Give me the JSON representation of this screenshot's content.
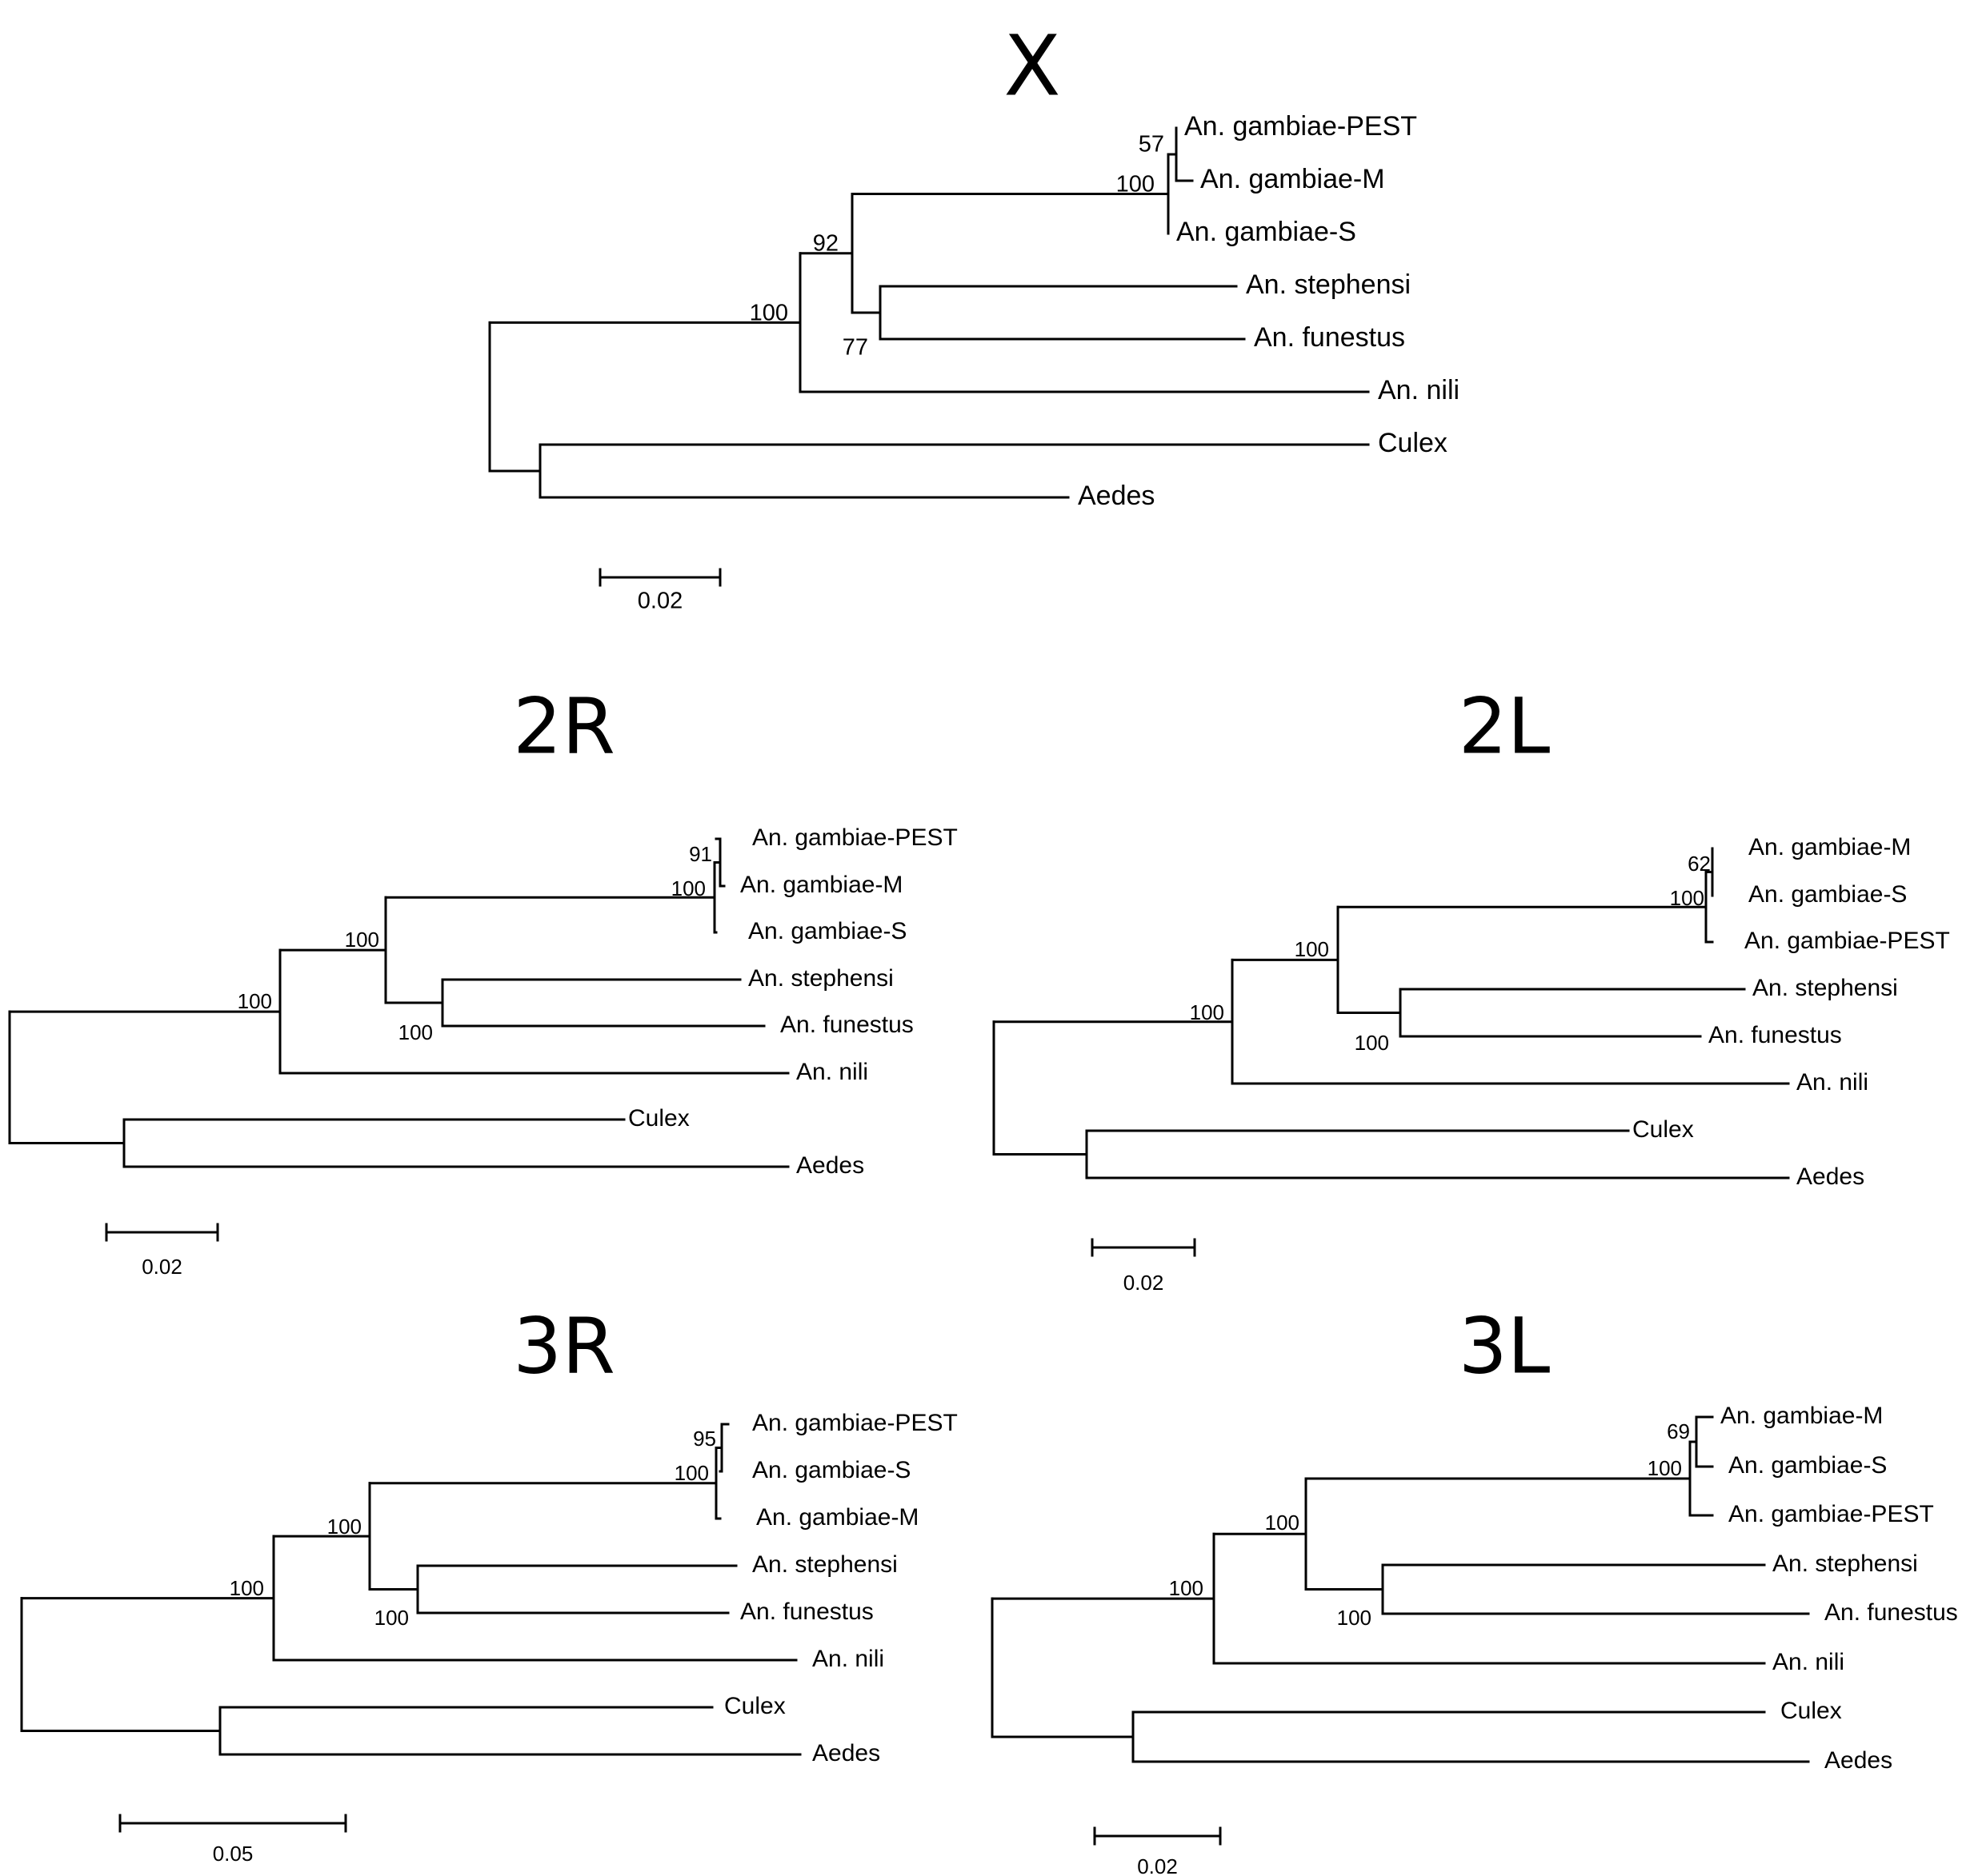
{
  "trees": [
    {
      "title": "X",
      "scale_label": "0.02",
      "taxa": [
        "An. gambiae-PEST",
        "An. gambiae-M",
        "An. gambiae-S",
        "An. stephensi",
        "An. funestus",
        "An. nili",
        "Culex",
        "Aedes"
      ],
      "bootstrap": [
        "57",
        "100",
        "92",
        "77",
        "100"
      ]
    },
    {
      "title": "2R",
      "scale_label": "0.02",
      "taxa": [
        "An. gambiae-PEST",
        "An. gambiae-M",
        "An. gambiae-S",
        "An. stephensi",
        "An. funestus",
        "An. nili",
        "Culex",
        "Aedes"
      ],
      "bootstrap": [
        "91",
        "100",
        "100",
        "100",
        "100"
      ]
    },
    {
      "title": "2L",
      "scale_label": "0.02",
      "taxa": [
        "An. gambiae-M",
        "An. gambiae-S",
        "An. gambiae-PEST",
        "An. stephensi",
        "An. funestus",
        "An. nili",
        "Culex",
        "Aedes"
      ],
      "bootstrap": [
        "62",
        "100",
        "100",
        "100",
        "100"
      ]
    },
    {
      "title": "3R",
      "scale_label": "0.05",
      "taxa": [
        "An. gambiae-PEST",
        "An. gambiae-S",
        "An. gambiae-M",
        "An. stephensi",
        "An. funestus",
        "An. nili",
        "Culex",
        "Aedes"
      ],
      "bootstrap": [
        "95",
        "100",
        "100",
        "100",
        "100"
      ]
    },
    {
      "title": "3L",
      "scale_label": "0.02",
      "taxa": [
        "An. gambiae-M",
        "An. gambiae-S",
        "An. gambiae-PEST",
        "An. stephensi",
        "An. funestus",
        "An. nili",
        "Culex",
        "Aedes"
      ],
      "bootstrap": [
        "69",
        "100",
        "100",
        "100",
        "100"
      ]
    }
  ]
}
